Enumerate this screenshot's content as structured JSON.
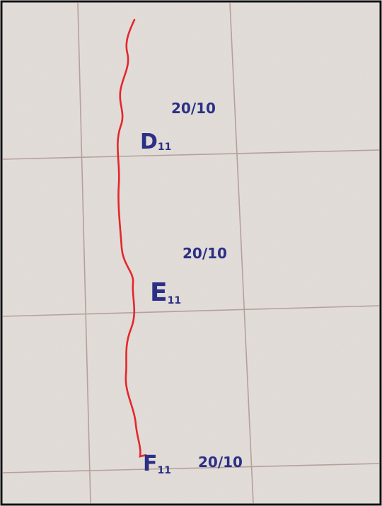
{
  "notes": [
    {
      "letter": "D",
      "sub": "11",
      "date": "20/10"
    },
    {
      "letter": "E",
      "sub": "11",
      "date": "20/10"
    },
    {
      "letter": "F",
      "sub": "11",
      "date": "20/10"
    }
  ]
}
